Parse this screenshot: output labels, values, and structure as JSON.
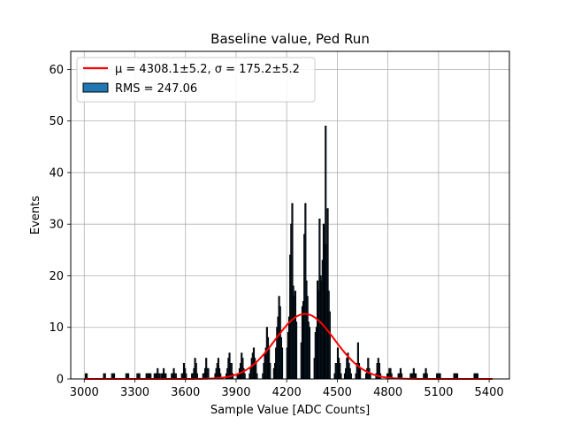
{
  "chart_data": {
    "type": "bar",
    "title": "Baseline value, Ped Run",
    "xlabel": "Sample Value [ADC Counts]",
    "ylabel": "Events",
    "xlim": [
      2920,
      5520
    ],
    "ylim": [
      0,
      63.5
    ],
    "xticks": [
      3000,
      3300,
      3600,
      3900,
      4200,
      4500,
      4800,
      5100,
      5400
    ],
    "yticks": [
      0,
      10,
      20,
      30,
      40,
      50,
      60
    ],
    "grid": true,
    "legend_position": "top-left",
    "histogram": {
      "name": "RMS = 247.06",
      "color": "#1f77b4",
      "edgecolor": "#000000",
      "bin_width": 6,
      "clusters": [
        {
          "center": 3010,
          "peak": 1,
          "halfwidth": 4
        },
        {
          "center": 3120,
          "peak": 1,
          "halfwidth": 4
        },
        {
          "center": 3170,
          "peak": 1,
          "halfwidth": 6
        },
        {
          "center": 3255,
          "peak": 1,
          "halfwidth": 8
        },
        {
          "center": 3320,
          "peak": 1,
          "halfwidth": 6
        },
        {
          "center": 3380,
          "peak": 1,
          "halfwidth": 12
        },
        {
          "center": 3430,
          "peak": 2,
          "halfwidth": 16
        },
        {
          "center": 3470,
          "peak": 2,
          "halfwidth": 10
        },
        {
          "center": 3530,
          "peak": 2,
          "halfwidth": 14
        },
        {
          "center": 3590,
          "peak": 3,
          "halfwidth": 14
        },
        {
          "center": 3655,
          "peak": 4,
          "halfwidth": 16
        },
        {
          "center": 3720,
          "peak": 4,
          "halfwidth": 16
        },
        {
          "center": 3790,
          "peak": 4,
          "halfwidth": 18
        },
        {
          "center": 3860,
          "peak": 5,
          "halfwidth": 18
        },
        {
          "center": 3930,
          "peak": 5,
          "halfwidth": 20
        },
        {
          "center": 4000,
          "peak": 6,
          "halfwidth": 20
        },
        {
          "center": 4080,
          "peak": 10,
          "halfwidth": 22
        },
        {
          "center": 4150,
          "peak": 16,
          "halfwidth": 24
        },
        {
          "center": 4230,
          "peak": 34,
          "halfwidth": 28
        },
        {
          "center": 4310,
          "peak": 34,
          "halfwidth": 26
        },
        {
          "center": 4390,
          "peak": 31,
          "halfwidth": 24
        },
        {
          "center": 4430,
          "peak": 49,
          "halfwidth": 26
        },
        {
          "center": 4500,
          "peak": 6,
          "halfwidth": 20
        },
        {
          "center": 4560,
          "peak": 5,
          "halfwidth": 18
        },
        {
          "center": 4620,
          "peak": 7,
          "halfwidth": 14
        },
        {
          "center": 4680,
          "peak": 4,
          "halfwidth": 14
        },
        {
          "center": 4740,
          "peak": 4,
          "halfwidth": 14
        },
        {
          "center": 4810,
          "peak": 2,
          "halfwidth": 12
        },
        {
          "center": 4870,
          "peak": 2,
          "halfwidth": 10
        },
        {
          "center": 4950,
          "peak": 2,
          "halfwidth": 14
        },
        {
          "center": 5020,
          "peak": 2,
          "halfwidth": 10
        },
        {
          "center": 5100,
          "peak": 1,
          "halfwidth": 8
        },
        {
          "center": 5200,
          "peak": 1,
          "halfwidth": 10
        },
        {
          "center": 5320,
          "peak": 1,
          "halfwidth": 8
        }
      ]
    },
    "fit": {
      "type": "gaussian",
      "label": "μ = 4308.1±5.2, σ = 175.2±5.2",
      "color": "#ff0000",
      "mu": 4308.1,
      "sigma": 175.2,
      "amplitude": 12.6,
      "x_range": [
        3000,
        5420
      ]
    }
  }
}
